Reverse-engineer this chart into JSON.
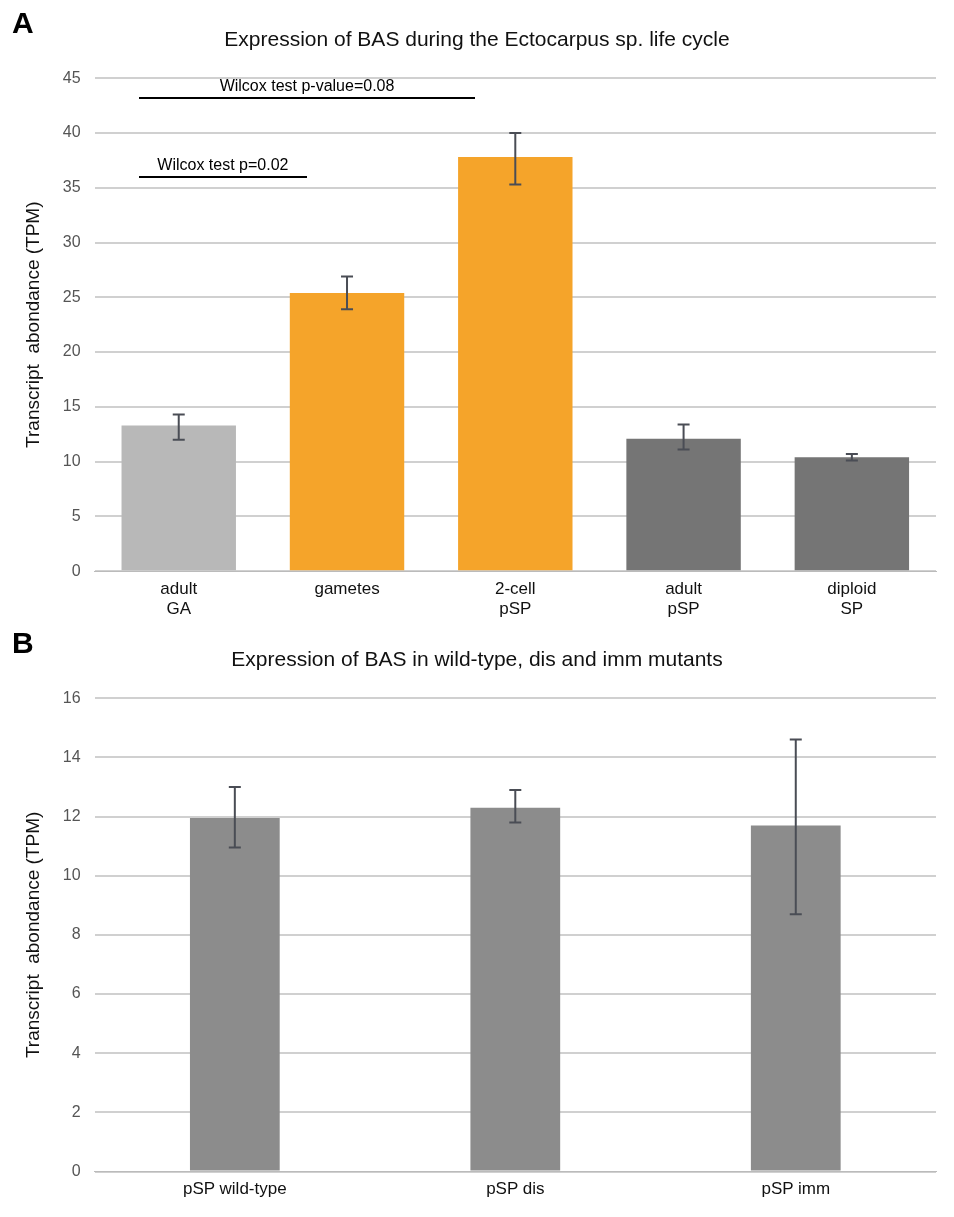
{
  "chart_data": [
    {
      "type": "bar",
      "title": "Expression of BAS during the Ectocarpus sp. life cycle",
      "ylabel": "Transcript  abondance (TPM)",
      "categories": [
        "adult GA",
        "gametes",
        "2-cell pSP",
        "adult pSP",
        "diploid SP"
      ],
      "values": [
        13.3,
        25.4,
        37.8,
        12.1,
        10.4
      ],
      "colors": [
        "#b8b8b8",
        "#f5a42a",
        "#f5a42a",
        "#757575",
        "#757575"
      ],
      "errors": [
        [
          12.0,
          14.3
        ],
        [
          23.9,
          26.9
        ],
        [
          35.3,
          40.0
        ],
        [
          11.1,
          13.4
        ],
        [
          10.1,
          10.7
        ]
      ],
      "ylim": [
        0,
        45
      ],
      "yticks": [
        0,
        5,
        10,
        15,
        20,
        25,
        30,
        35,
        40,
        45
      ],
      "grid": "y",
      "annotations": [
        "A",
        "Wilcox test p-value=0.08",
        "Wilcox test p=0.02"
      ]
    },
    {
      "type": "bar",
      "title": "Expression of BAS in wild-type, dis and imm mutants",
      "ylabel": "Transcript  abondance (TPM)",
      "categories": [
        "pSP wild-type",
        "pSP dis",
        "pSP imm"
      ],
      "values": [
        11.95,
        12.3,
        11.7
      ],
      "color": "#8c8c8c",
      "errors": [
        [
          10.95,
          13.0
        ],
        [
          11.8,
          12.9
        ],
        [
          8.7,
          14.6
        ]
      ],
      "ylim": [
        0,
        16
      ],
      "yticks": [
        0,
        2,
        4,
        6,
        8,
        10,
        12,
        14,
        16
      ],
      "grid": "y",
      "annotations": [
        "B"
      ]
    }
  ]
}
